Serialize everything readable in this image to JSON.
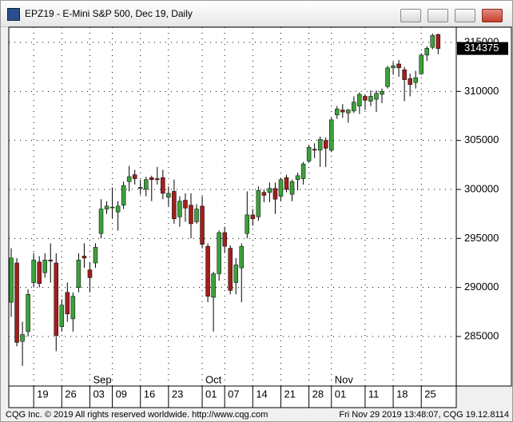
{
  "window": {
    "title": "EPZ19 - E-Mini S&P 500, Dec 19, Daily"
  },
  "chart_data": {
    "type": "candlestick",
    "categories": [
      null,
      null,
      null,
      null,
      null,
      "19",
      null,
      null,
      null,
      null,
      "26",
      null,
      null,
      null,
      null,
      "03",
      null,
      null,
      null,
      "09",
      null,
      null,
      null,
      null,
      "16",
      null,
      null,
      null,
      null,
      "23",
      null,
      null,
      null,
      null,
      null,
      "01",
      null,
      null,
      null,
      "07",
      null,
      null,
      null,
      null,
      "14",
      null,
      null,
      null,
      null,
      "21",
      null,
      null,
      null,
      null,
      "28",
      null,
      null,
      null,
      "01",
      null,
      null,
      null,
      null,
      null,
      "11",
      null,
      null,
      null,
      null,
      "18",
      null,
      null,
      null,
      null,
      "25",
      null,
      null,
      null
    ],
    "month_labels": [
      null,
      null,
      null,
      null,
      null,
      null,
      null,
      null,
      null,
      null,
      null,
      null,
      null,
      null,
      null,
      "Sep",
      null,
      null,
      null,
      null,
      null,
      null,
      null,
      null,
      null,
      null,
      null,
      null,
      null,
      null,
      null,
      null,
      null,
      null,
      null,
      "Oct",
      null,
      null,
      null,
      null,
      null,
      null,
      null,
      null,
      null,
      null,
      null,
      null,
      null,
      null,
      null,
      null,
      null,
      null,
      null,
      null,
      null,
      null,
      "Nov",
      null,
      null,
      null,
      null,
      null,
      null,
      null,
      null,
      null,
      null,
      null,
      null,
      null,
      null,
      null,
      null,
      null,
      null,
      null
    ],
    "open": [
      290500,
      288500,
      292500,
      284500,
      285500,
      290500,
      292600,
      291500,
      292800,
      292500,
      286000,
      289500,
      286800,
      290000,
      293200,
      291800,
      292500,
      295500,
      298000,
      298200,
      297700,
      298400,
      300800,
      301500,
      300200,
      300000,
      301200,
      301100,
      301200,
      299200,
      299800,
      297200,
      298900,
      298400,
      296700,
      298300,
      294200,
      289000,
      291400,
      295600,
      294000,
      290500,
      292000,
      295500,
      297400,
      297200,
      299700,
      299700,
      300100,
      299300,
      301200,
      299500,
      301000,
      301100,
      302900,
      304100,
      304000,
      305000,
      304000,
      307600,
      308100,
      307800,
      308000,
      308500,
      309500,
      309000,
      309200,
      309700,
      310500,
      312400,
      312800,
      312200,
      311300,
      310900,
      311800,
      313700,
      314500,
      315800
    ],
    "high": [
      291500,
      294000,
      293000,
      286500,
      289800,
      293500,
      293200,
      293500,
      294500,
      293500,
      288800,
      290500,
      289500,
      293500,
      294500,
      292500,
      294500,
      299000,
      298800,
      300200,
      298800,
      300800,
      302400,
      302000,
      301000,
      301300,
      301400,
      302300,
      302000,
      300300,
      301000,
      299300,
      299600,
      299600,
      298500,
      299300,
      294500,
      291600,
      295800,
      296200,
      294300,
      293000,
      294500,
      299800,
      298000,
      300300,
      300000,
      300700,
      300700,
      301200,
      301500,
      301000,
      301700,
      302800,
      304500,
      304700,
      305400,
      305300,
      307300,
      308500,
      308700,
      308200,
      309500,
      309900,
      309700,
      310100,
      310100,
      310300,
      312600,
      313000,
      313200,
      312500,
      311800,
      312100,
      313900,
      314600,
      315900,
      315900
    ],
    "low": [
      287500,
      287000,
      284000,
      282000,
      285000,
      290000,
      290000,
      291000,
      290500,
      283500,
      285500,
      286500,
      285500,
      289500,
      292000,
      289500,
      292000,
      295000,
      297500,
      297000,
      295800,
      298000,
      299800,
      300500,
      299500,
      299300,
      298800,
      300500,
      299000,
      298300,
      296500,
      296200,
      296700,
      295000,
      296500,
      294000,
      288500,
      285500,
      290700,
      293500,
      289300,
      289300,
      288500,
      295000,
      296300,
      296800,
      298700,
      298700,
      297500,
      298800,
      299700,
      298800,
      299900,
      300500,
      302700,
      303200,
      302300,
      302300,
      303800,
      307200,
      307300,
      306800,
      307800,
      307700,
      308100,
      308500,
      307900,
      308800,
      310300,
      311700,
      311500,
      309000,
      309500,
      310300,
      311700,
      313100,
      314300,
      313800
    ],
    "close": [
      288700,
      293000,
      284400,
      285200,
      289300,
      292800,
      290400,
      292800,
      292700,
      285100,
      288200,
      287300,
      289100,
      292800,
      293000,
      291000,
      294100,
      298000,
      298300,
      298200,
      298300,
      300400,
      301300,
      301100,
      300100,
      301000,
      301000,
      301000,
      299600,
      299600,
      297000,
      298800,
      298100,
      296500,
      298000,
      294400,
      289100,
      291400,
      295600,
      294200,
      289700,
      292300,
      294200,
      297400,
      297000,
      299900,
      299400,
      300100,
      299000,
      301000,
      300000,
      300800,
      301400,
      302600,
      304300,
      304000,
      305100,
      304200,
      307100,
      308200,
      307900,
      308100,
      308900,
      309700,
      309100,
      309500,
      309800,
      310000,
      312400,
      312600,
      312400,
      311200,
      310700,
      311400,
      313700,
      314400,
      315700,
      314375
    ],
    "up_color": "#3ca03c",
    "down_color": "#a0201c",
    "ylim": [
      279946,
      316549
    ],
    "yticks": [
      285000,
      290000,
      295000,
      300000,
      305000,
      310000,
      315000
    ],
    "grid": true
  },
  "footer": {
    "left": "CQG Inc. © 2019 All rights reserved worldwide. http://www.cqg.com",
    "right": "Fri Nov 29 2019 13:48:07, CQG 19.12.8114"
  }
}
